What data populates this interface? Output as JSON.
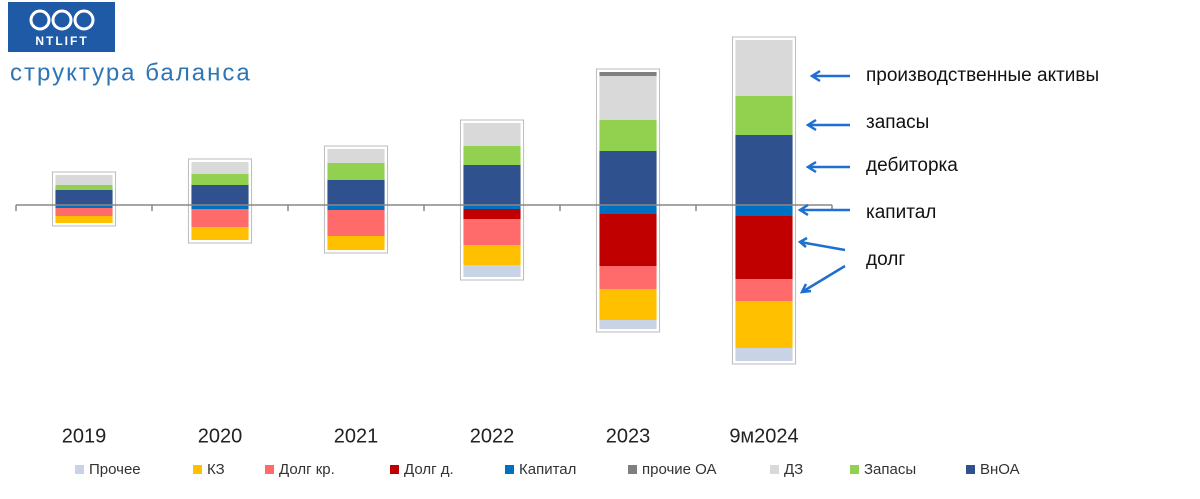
{
  "header": {
    "logo": "NTLIFT",
    "title": "структура баланса"
  },
  "chart_data": {
    "type": "stacked-bar",
    "categories": [
      "2019",
      "2020",
      "2021",
      "2022",
      "2023",
      "9м2024"
    ],
    "ylim": [
      -170,
      175
    ],
    "series": [
      {
        "name": "Прочее",
        "color": "#c9d3e6",
        "values": [
          0,
          0,
          0,
          -12,
          -9,
          -13
        ]
      },
      {
        "name": "КЗ",
        "color": "#ffc000",
        "values": [
          -7,
          -13,
          -14,
          -20,
          -31,
          -47
        ]
      },
      {
        "name": "Долг кр.",
        "color": "#ff6b6b",
        "values": [
          -8,
          -18,
          -26,
          -26,
          -23,
          -22
        ]
      },
      {
        "name": "Долг д.",
        "color": "#c00000",
        "values": [
          0,
          0,
          0,
          -10,
          -52,
          -63
        ]
      },
      {
        "name": "Капитал",
        "color": "#0070c0",
        "values": [
          -3,
          -4,
          -5,
          -4,
          -9,
          -11
        ]
      },
      {
        "name": "прочие ОА",
        "color": "#7f7f7f",
        "values": [
          0,
          0,
          0,
          0,
          4,
          0
        ]
      },
      {
        "name": "ДЗ",
        "color": "#d9d9d9",
        "values": [
          10,
          12,
          14,
          23,
          44,
          56
        ]
      },
      {
        "name": "Запасы",
        "color": "#92d050",
        "values": [
          5,
          11,
          17,
          19,
          31,
          39
        ]
      },
      {
        "name": "ВнОА",
        "color": "#2f528f",
        "values": [
          15,
          20,
          25,
          40,
          54,
          70
        ]
      }
    ],
    "annotations": [
      "производственные активы",
      "запасы",
      "дебиторка",
      "капитал",
      "долг"
    ]
  }
}
